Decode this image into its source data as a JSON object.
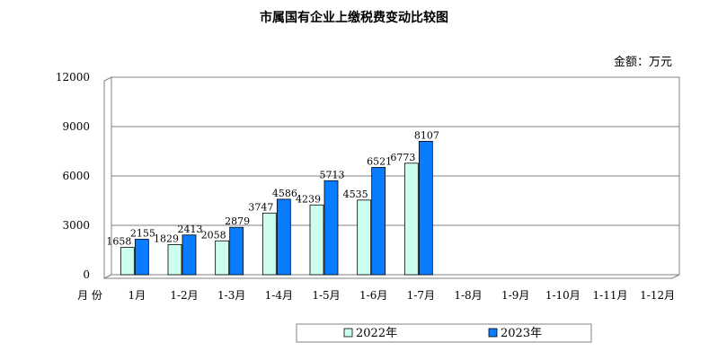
{
  "chart_data": {
    "type": "bar",
    "title": "市属国有企业上缴税费变动比较图",
    "unit_label": "金额：万元",
    "xlabel": "月 份",
    "ylabel": "",
    "ylim": [
      0,
      12000
    ],
    "yticks": [
      0,
      3000,
      6000,
      9000,
      12000
    ],
    "grid": true,
    "legend_position": "bottom",
    "categories": [
      "1月",
      "1-2月",
      "1-3月",
      "1-4月",
      "1-5月",
      "1-6月",
      "1-7月",
      "1-8月",
      "1-9月",
      "1-10月",
      "1-11月",
      "1-12月"
    ],
    "series": [
      {
        "name": "2022年",
        "color": "#ccffee",
        "values": [
          1658,
          1829,
          2058,
          3747,
          4239,
          4535,
          6773,
          null,
          null,
          null,
          null,
          null
        ]
      },
      {
        "name": "2023年",
        "color": "#0a7cff",
        "values": [
          2155,
          2413,
          2879,
          4586,
          5713,
          6521,
          8107,
          null,
          null,
          null,
          null,
          null
        ]
      }
    ]
  }
}
